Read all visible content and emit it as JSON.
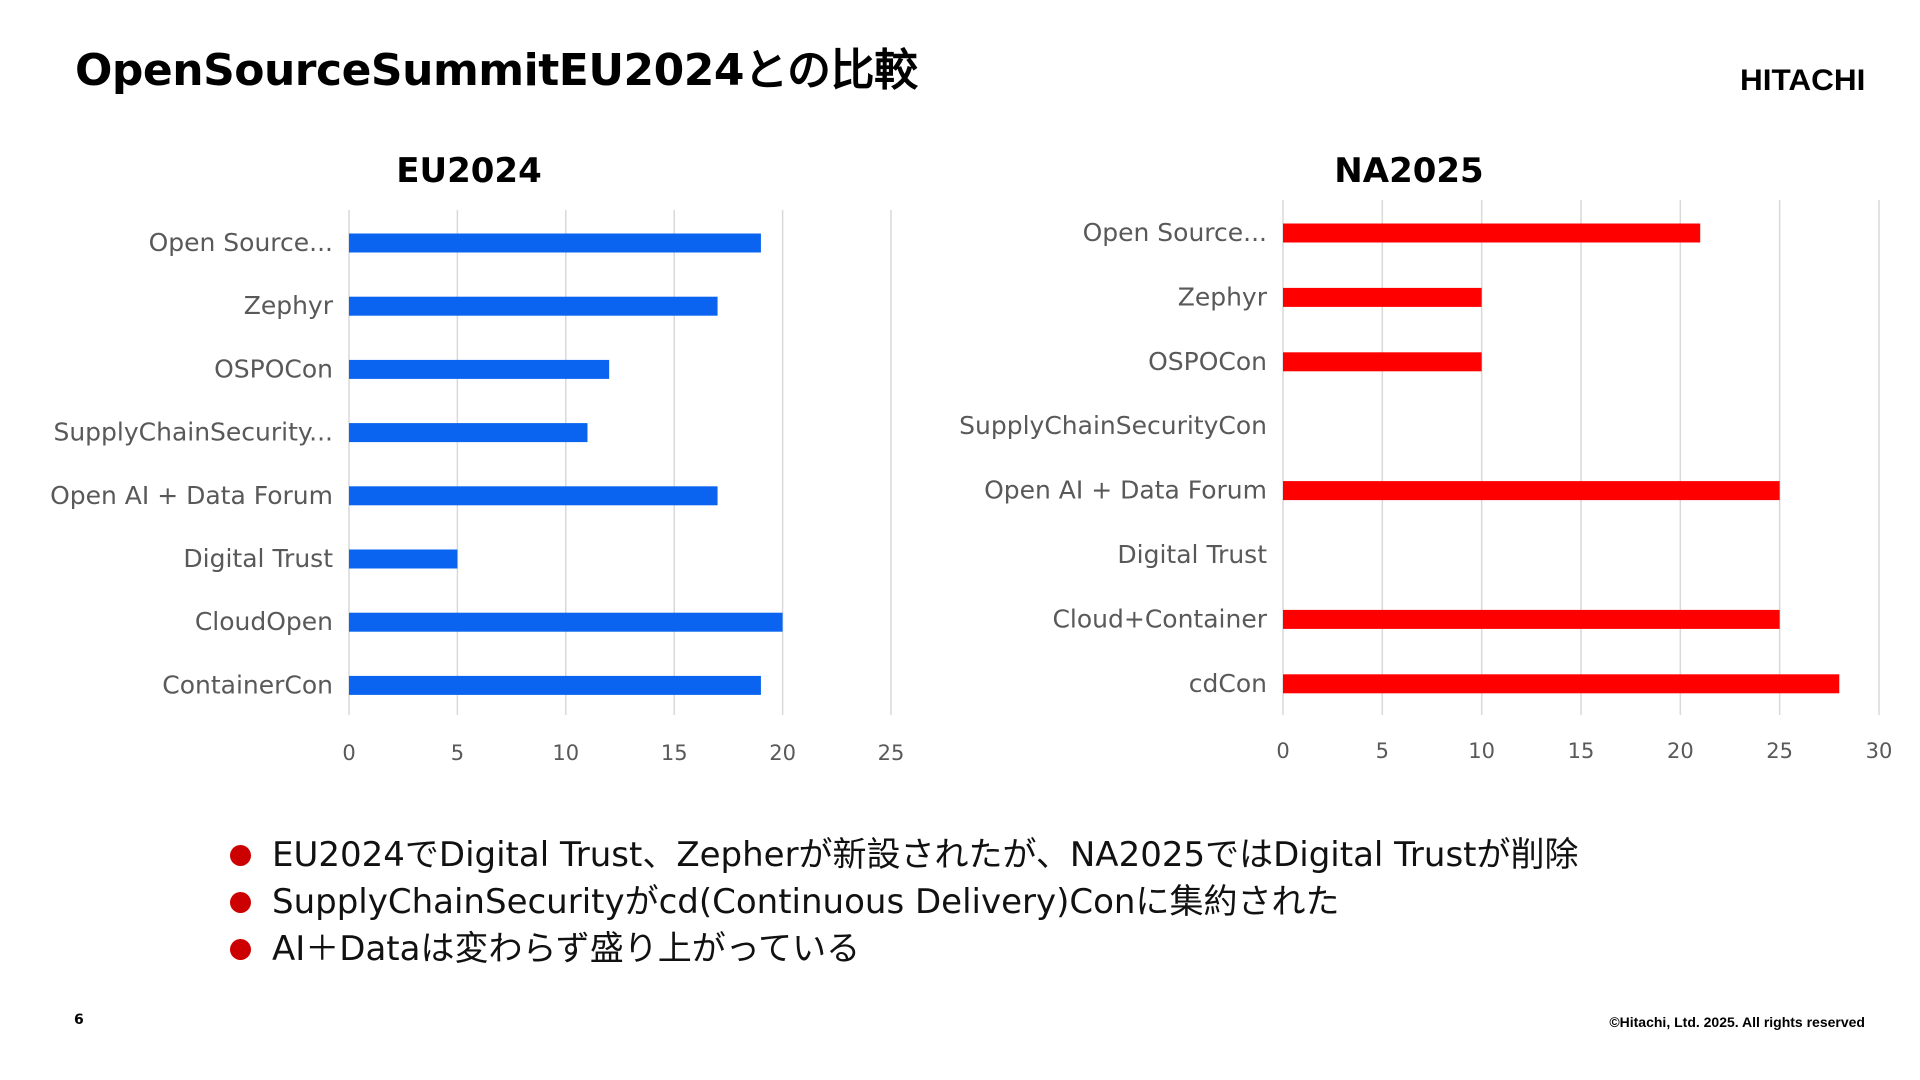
{
  "slide": {
    "title": "OpenSourceSummitEU2024との比較",
    "logo": "HITACHI",
    "page_number": "6",
    "copyright": "©Hitachi, Ltd. 2025. All rights reserved",
    "bullet_color": "#cc0000",
    "bullets": [
      "EU2024でDigital Trust、Zepherが新設されたが、NA2025ではDigital Trustが削除",
      "SupplyChainSecurityがcd(Continuous Delivery)Conに集約された",
      "AI＋Dataは変わらず盛り上がっている"
    ]
  },
  "chart_data": [
    {
      "type": "bar",
      "orientation": "horizontal",
      "title": "EU2024",
      "color": "#0a64f0",
      "categories": [
        "Open Source...",
        "Zephyr",
        "OSPOCon",
        "SupplyChainSecurity...",
        "Open AI + Data Forum",
        "Digital Trust",
        "CloudOpen",
        "ContainerCon"
      ],
      "values": [
        19,
        17,
        12,
        11,
        17,
        5,
        20,
        19
      ],
      "xlim": [
        0,
        25
      ],
      "xticks": [
        "0",
        "5",
        "10",
        "15",
        "20",
        "25"
      ],
      "grid": true
    },
    {
      "type": "bar",
      "orientation": "horizontal",
      "title": "NA2025",
      "color": "#ff0000",
      "categories": [
        "Open Source...",
        "Zephyr",
        "OSPOCon",
        "SupplyChainSecurityCon",
        "Open AI + Data Forum",
        "Digital Trust",
        "Cloud+Container",
        "cdCon"
      ],
      "values": [
        21,
        10,
        10,
        0,
        25,
        0,
        25,
        28
      ],
      "xlim": [
        0,
        30
      ],
      "xticks": [
        "0",
        "5",
        "10",
        "15",
        "20",
        "25",
        "30"
      ],
      "grid": true
    }
  ]
}
